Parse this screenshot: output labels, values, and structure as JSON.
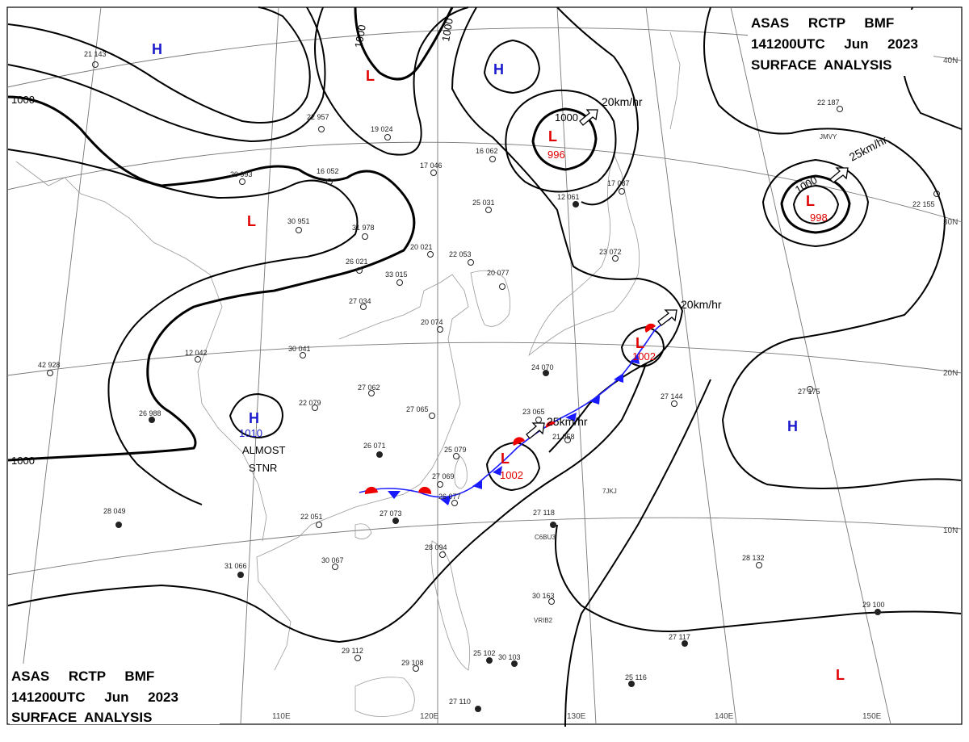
{
  "header_top": {
    "line1": "ASAS     RCTP     BMF",
    "line2": "141200UTC     Jun     2023",
    "line3": "SURFACE  ANALYSIS"
  },
  "header_bottom": {
    "line1": "ASAS     RCTP     BMF",
    "line2": "141200UTC     Jun     2023",
    "line3": "SURFACE  ANALYSIS"
  },
  "longitude_labels": [
    "110E",
    "120E",
    "130E",
    "140E",
    "150E"
  ],
  "latitude_labels": [
    "40N",
    "30N",
    "20N",
    "10N"
  ],
  "isobar_labels": [
    "1000",
    "1000",
    "1000",
    "1000",
    "1000",
    "1000"
  ],
  "pressure_centers": [
    {
      "type": "H",
      "value": ""
    },
    {
      "type": "L",
      "value": ""
    },
    {
      "type": "H",
      "value": ""
    },
    {
      "type": "L",
      "value": "996"
    },
    {
      "type": "L",
      "value": ""
    },
    {
      "type": "L",
      "value": "998"
    },
    {
      "type": "H",
      "value": "1010"
    },
    {
      "type": "L",
      "value": "1002"
    },
    {
      "type": "L",
      "value": "1002"
    },
    {
      "type": "H",
      "value": ""
    },
    {
      "type": "L",
      "value": ""
    }
  ],
  "motions": [
    "20km/hr",
    "25km/hr",
    "20km/hr",
    "25km/hr"
  ],
  "notes": {
    "almost": "ALMOST",
    "stnr": "STNR"
  },
  "stations": [
    {
      "v": "21  143"
    },
    {
      "v": "22  957"
    },
    {
      "v": "19  024"
    },
    {
      "v": "20  993"
    },
    {
      "v": "16  052"
    },
    {
      "v": "30  951"
    },
    {
      "v": "31  978"
    },
    {
      "v": "26  021"
    },
    {
      "v": "33  015"
    },
    {
      "v": "27  034"
    },
    {
      "v": "30  041"
    },
    {
      "v": "12  042"
    },
    {
      "v": "42  928"
    },
    {
      "v": "26  988"
    },
    {
      "v": "22  079"
    },
    {
      "v": "27  062"
    },
    {
      "v": "27  065"
    },
    {
      "v": "26  071"
    },
    {
      "v": "25  079"
    },
    {
      "v": "27  069"
    },
    {
      "v": "26  077"
    },
    {
      "v": "27  073"
    },
    {
      "v": "22  051"
    },
    {
      "v": "28  049"
    },
    {
      "v": "30  067"
    },
    {
      "v": "31  066"
    },
    {
      "v": "28  094"
    },
    {
      "v": "29  112"
    },
    {
      "v": "29  108"
    },
    {
      "v": "25  102"
    },
    {
      "v": "27  110"
    },
    {
      "v": "30  103"
    },
    {
      "v": "30  163"
    },
    {
      "v": "27  118"
    },
    {
      "v": "27  144"
    },
    {
      "v": "27  175"
    },
    {
      "v": "28  132"
    },
    {
      "v": "29  100"
    },
    {
      "v": "27  117"
    },
    {
      "v": "25  116"
    },
    {
      "v": "20  077"
    },
    {
      "v": "22  053"
    },
    {
      "v": "20  021"
    },
    {
      "v": "25  031"
    },
    {
      "v": "16  062"
    },
    {
      "v": "17  046"
    },
    {
      "v": "12  061"
    },
    {
      "v": "17  087"
    },
    {
      "v": "23  072"
    },
    {
      "v": "24  070"
    },
    {
      "v": "20  074"
    },
    {
      "v": "23  065"
    },
    {
      "v": "21  058"
    },
    {
      "v": "22  155"
    },
    {
      "v": "22  187"
    }
  ],
  "ship_ids": [
    "JMVY",
    "C6BU3",
    "7JKJ",
    "VRIB2"
  ]
}
